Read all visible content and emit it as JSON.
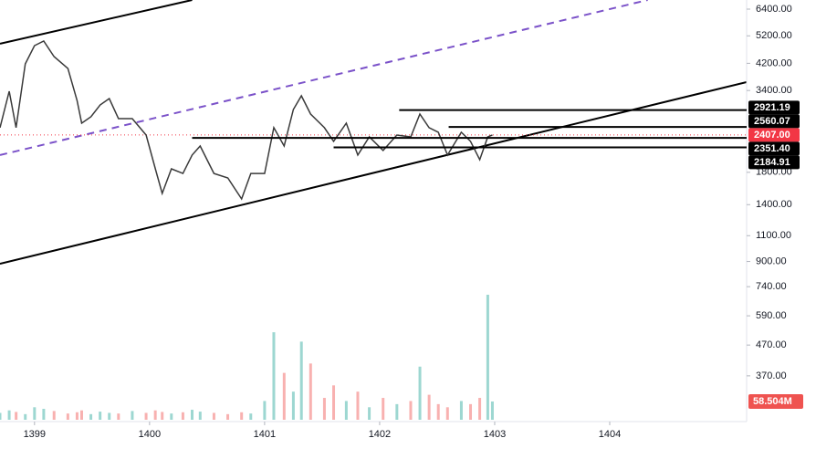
{
  "chart_data": {
    "type": "line",
    "log_scale": true,
    "xlim": [
      1398.7,
      1405.19
    ],
    "xticks": [
      1399,
      1400,
      1401,
      1402,
      1403,
      1404
    ],
    "ylim": [
      263,
      6870
    ],
    "yticks": [
      {
        "value": 6400,
        "label": "6400.00"
      },
      {
        "value": 5200,
        "label": "5200.00"
      },
      {
        "value": 4200,
        "label": "4200.00"
      },
      {
        "value": 3400,
        "label": "3400.00"
      },
      {
        "value": 1800,
        "label": "1800.00"
      },
      {
        "value": 1400,
        "label": "1400.00"
      },
      {
        "value": 1100,
        "label": "1100.00"
      },
      {
        "value": 900,
        "label": "900.00"
      },
      {
        "value": 740,
        "label": "740.00"
      },
      {
        "value": 590,
        "label": "590.00"
      },
      {
        "value": 470,
        "label": "470.00"
      },
      {
        "value": 370,
        "label": "370.00"
      }
    ],
    "x": [
      1398.7,
      1398.78,
      1398.84,
      1398.92,
      1399.0,
      1399.08,
      1399.17,
      1399.29,
      1399.37,
      1399.41,
      1399.49,
      1399.57,
      1399.65,
      1399.73,
      1399.85,
      1399.97,
      1400.05,
      1400.11,
      1400.19,
      1400.29,
      1400.37,
      1400.44,
      1400.56,
      1400.68,
      1400.8,
      1400.88,
      1401.0,
      1401.08,
      1401.17,
      1401.25,
      1401.32,
      1401.4,
      1401.52,
      1401.6,
      1401.71,
      1401.81,
      1401.91,
      1402.03,
      1402.15,
      1402.27,
      1402.35,
      1402.43,
      1402.51,
      1402.59,
      1402.71,
      1402.79,
      1402.87,
      1402.94,
      1402.98
    ],
    "series": [
      {
        "color": "#3a3a3a",
        "values": [
          2546,
          3381,
          2546,
          4182,
          4820,
          4994,
          4425,
          4036,
          3148,
          2636,
          2771,
          3039,
          3194,
          2733,
          2733,
          2405,
          1850,
          1527,
          1850,
          1784,
          2058,
          2209,
          1784,
          1723,
          1464,
          1784,
          1784,
          2546,
          2209,
          2932,
          3262,
          2830,
          2546,
          2289,
          2636,
          2058,
          2371,
          2133,
          2405,
          2371,
          2830,
          2546,
          2458,
          2058,
          2458,
          2289,
          1985,
          2371,
          2407
        ]
      }
    ],
    "up_color": "#26a69a",
    "down_color": "#ef5350",
    "volume": {
      "values": [
        22,
        30,
        25,
        18,
        40,
        35,
        28,
        20,
        24,
        30,
        18,
        26,
        22,
        20,
        28,
        22,
        30,
        25,
        20,
        24,
        32,
        26,
        22,
        18,
        24,
        20,
        60,
        280,
        150,
        90,
        250,
        180,
        70,
        110,
        60,
        90,
        40,
        70,
        50,
        60,
        170,
        80,
        50,
        40,
        60,
        50,
        70,
        400,
        58.504
      ],
      "vlim": [
        0,
        400
      ],
      "last_label": "58.504M"
    },
    "trendlines": [
      {
        "x": [
          1398.7,
          1400.37
        ],
        "y": [
          4890,
          6870
        ],
        "color": "#000000",
        "dashed": false
      },
      {
        "x": [
          1398.7,
          1405.19
        ],
        "y": [
          884,
          3630
        ],
        "color": "#000000",
        "dashed": false
      },
      {
        "x": [
          1398.7,
          1404.33
        ],
        "y": [
          2058,
          6870
        ],
        "color": "#7b52c9",
        "dashed": true
      }
    ],
    "levels": [
      {
        "value": 2921.19,
        "from": 1402.17
      },
      {
        "value": 2560.07,
        "from": 1402.6
      },
      {
        "value": 2351.4,
        "label": "2351.40",
        "from": 1400.37
      },
      {
        "value": 2184.91,
        "from": 1401.6
      }
    ],
    "current_price": {
      "value": 2407,
      "label": "2407.00",
      "color": "#f23645"
    }
  }
}
